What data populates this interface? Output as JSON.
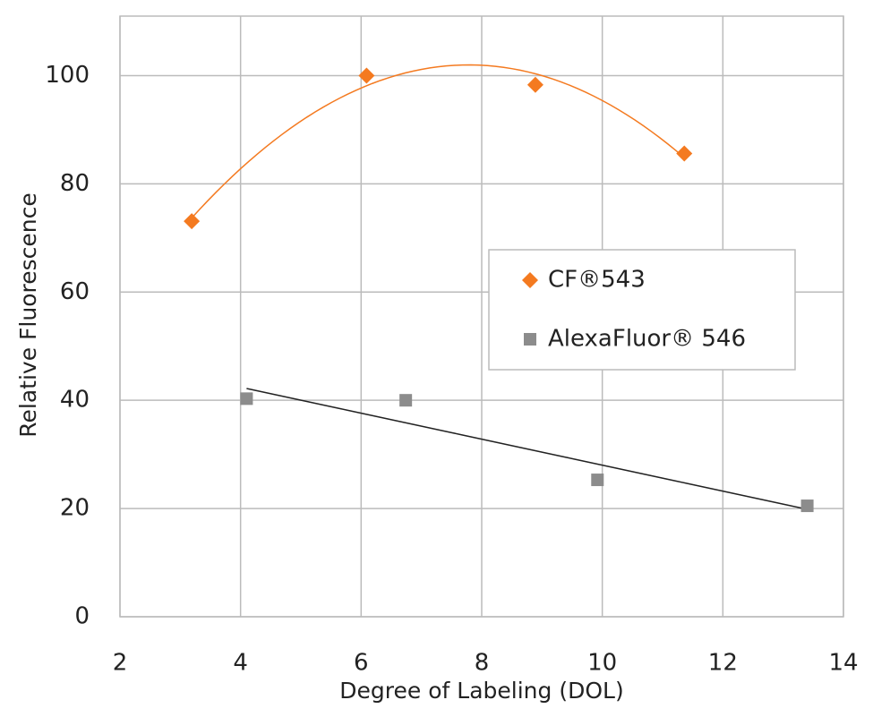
{
  "chart_data": {
    "type": "scatter",
    "x_label": "Degree of Labeling (DOL)",
    "y_label": "Relative Fluorescence",
    "xlim": [
      2,
      14
    ],
    "xticks": [
      2,
      4,
      6,
      8,
      10,
      12,
      14
    ],
    "ylim": [
      0,
      110
    ],
    "yticks": [
      0,
      20,
      40,
      60,
      80,
      100
    ],
    "grid": true,
    "legend": "right",
    "series": [
      {
        "name": "CF®543",
        "color": "#f47a20",
        "marker": "diamond",
        "trendline": "poly2",
        "x": [
          3.19,
          6.09,
          8.89,
          11.36
        ],
        "values": [
          73.1,
          100,
          98.3,
          85.6
        ]
      },
      {
        "name": "AlexaFluor® 546",
        "color": "#8c8c8c",
        "marker": "square",
        "trendline": "linear",
        "x": [
          4.1,
          6.74,
          9.92,
          13.4
        ],
        "values": [
          40.3,
          40,
          25.3,
          20.5
        ]
      }
    ]
  }
}
